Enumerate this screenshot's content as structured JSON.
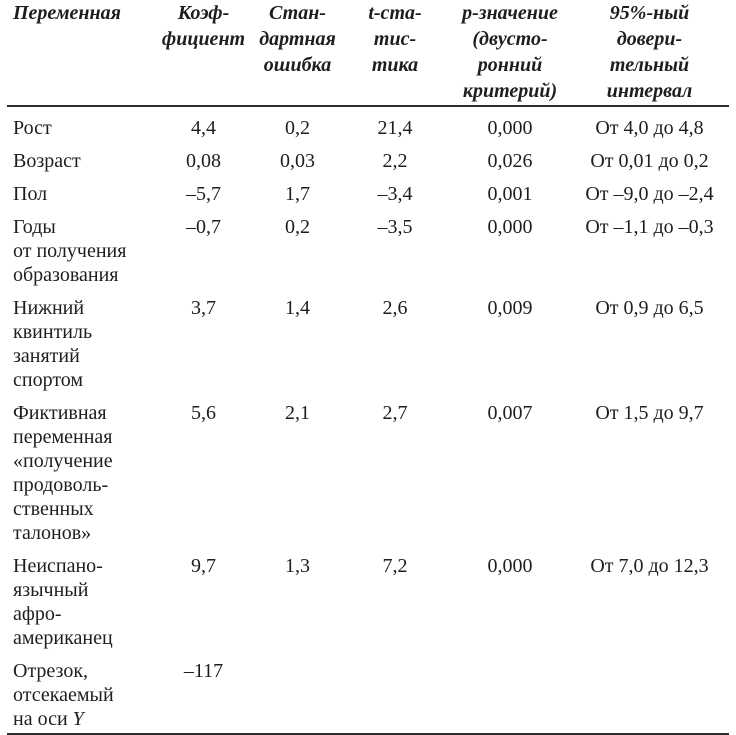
{
  "page": {
    "background_color": "#ffffff",
    "text_color": "#1e1e1e",
    "rule_color": "#2e2e2e"
  },
  "table": {
    "header": [
      "Переменная",
      "Коэф-\nфициент",
      "Стан-\nдартная\nошибка",
      "t-ста-\nтис-\nтика",
      "p-значение\n(двусто-\nронний\nкритерий)",
      "95%-ный\nдовери-\nтельный\nинтервал"
    ],
    "rows": [
      {
        "variable": "Рост",
        "coef": "4,4",
        "se": "0,2",
        "t": "21,4",
        "p": "0,000",
        "ci": "От 4,0 до 4,8"
      },
      {
        "variable": "Возраст",
        "coef": "0,08",
        "se": "0,03",
        "t": "2,2",
        "p": "0,026",
        "ci": "От 0,01 до 0,2"
      },
      {
        "variable": "Пол",
        "coef": "–5,7",
        "se": "1,7",
        "t": "–3,4",
        "p": "0,001",
        "ci": "От –9,0 до –2,4"
      },
      {
        "variable": "Годы\nот получения\nобразования",
        "coef": "–0,7",
        "se": "0,2",
        "t": "–3,5",
        "p": "0,000",
        "ci": "От –1,1 до –0,3"
      },
      {
        "variable": "Нижний\nквинтиль\nзанятий\nспортом",
        "coef": "3,7",
        "se": "1,4",
        "t": "2,6",
        "p": "0,009",
        "ci": "От 0,9 до 6,5"
      },
      {
        "variable": "Фиктивная\nпеременная\n«получение\nпродоволь-\nственных\nталонов»",
        "coef": "5,6",
        "se": "2,1",
        "t": "2,7",
        "p": "0,007",
        "ci": "От 1,5 до 9,7"
      },
      {
        "variable": "Неиспано-\nязычный\nафро-\nамериканец",
        "coef": "9,7",
        "se": "1,3",
        "t": "7,2",
        "p": "0,000",
        "ci": "От 7,0 до 12,3"
      },
      {
        "variable": "Отрезок,\nотсекаемый\nна оси ",
        "variable_italic": "Y",
        "coef": "–117",
        "se": "",
        "t": "",
        "p": "",
        "ci": ""
      }
    ]
  }
}
